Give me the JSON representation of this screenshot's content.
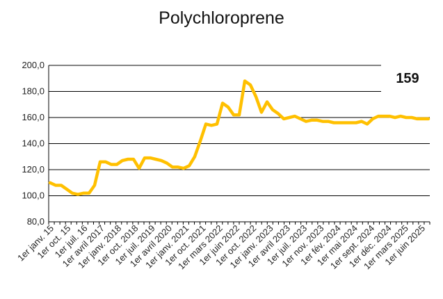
{
  "chart_data": {
    "type": "line",
    "title": "Polychloroprene",
    "annotation": "159",
    "ylim": [
      80,
      200
    ],
    "yticks": [
      "80,0",
      "100,0",
      "120,0",
      "140,0",
      "160,0",
      "180,0",
      "200,0"
    ],
    "ytick_values": [
      80,
      100,
      120,
      140,
      160,
      180,
      200
    ],
    "grid": true,
    "x_labels": [
      "1er janv. 15",
      "1er oct. 15",
      "1er juil. 16",
      "1er avril 2017",
      "1er janv. 2018",
      "1er oct. 2018",
      "1er juil. 2019",
      "1er avril 2020",
      "1er janv. 2021",
      "1er oct. 2021",
      "1er mars 2022",
      "1er juin 2022",
      "1er oct. 2022",
      "1er janv. 2023",
      "1er avril 2023",
      "1er juil. 2023",
      "1er nov. 2023",
      "1er fév. 2024",
      "1er mai 2024",
      "1er sept. 2024",
      "1er déc. 2024",
      "1er mars 2025",
      "1er juin 2025"
    ],
    "series": [
      {
        "color": "#FFC000",
        "values": [
          110,
          108,
          108,
          105,
          102,
          101,
          102,
          102,
          108,
          126,
          126,
          124,
          124,
          127,
          128,
          128,
          121,
          129,
          129,
          128,
          127,
          125,
          122,
          122,
          121,
          123,
          130,
          142,
          155,
          154,
          155,
          171,
          168,
          162,
          162,
          188,
          185,
          176,
          164,
          172,
          166,
          163,
          159,
          160,
          161,
          159,
          157,
          158,
          158,
          157,
          157,
          156,
          156,
          156,
          156,
          156,
          157,
          155,
          159,
          161,
          161,
          161,
          160,
          161,
          160,
          160,
          159,
          159,
          159
        ]
      }
    ]
  }
}
